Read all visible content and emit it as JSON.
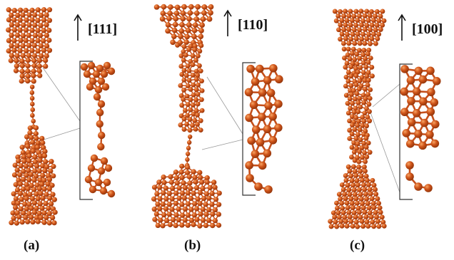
{
  "colors": {
    "atom_fill": "#d0551a",
    "atom_highlight": "#f7a463",
    "atom_shadow": "#8a3008",
    "bond": "#c4501c",
    "inset_frame": "#333333",
    "guide_line": "#999999",
    "text": "#111111"
  },
  "panels": [
    {
      "id": "a",
      "label": "(a)",
      "direction": "[111]"
    },
    {
      "id": "b",
      "label": "(b)",
      "direction": "[110]"
    },
    {
      "id": "c",
      "label": "(c)",
      "direction": "[100]"
    }
  ],
  "icons": {
    "direction_arrow": "up-arrow-icon"
  }
}
